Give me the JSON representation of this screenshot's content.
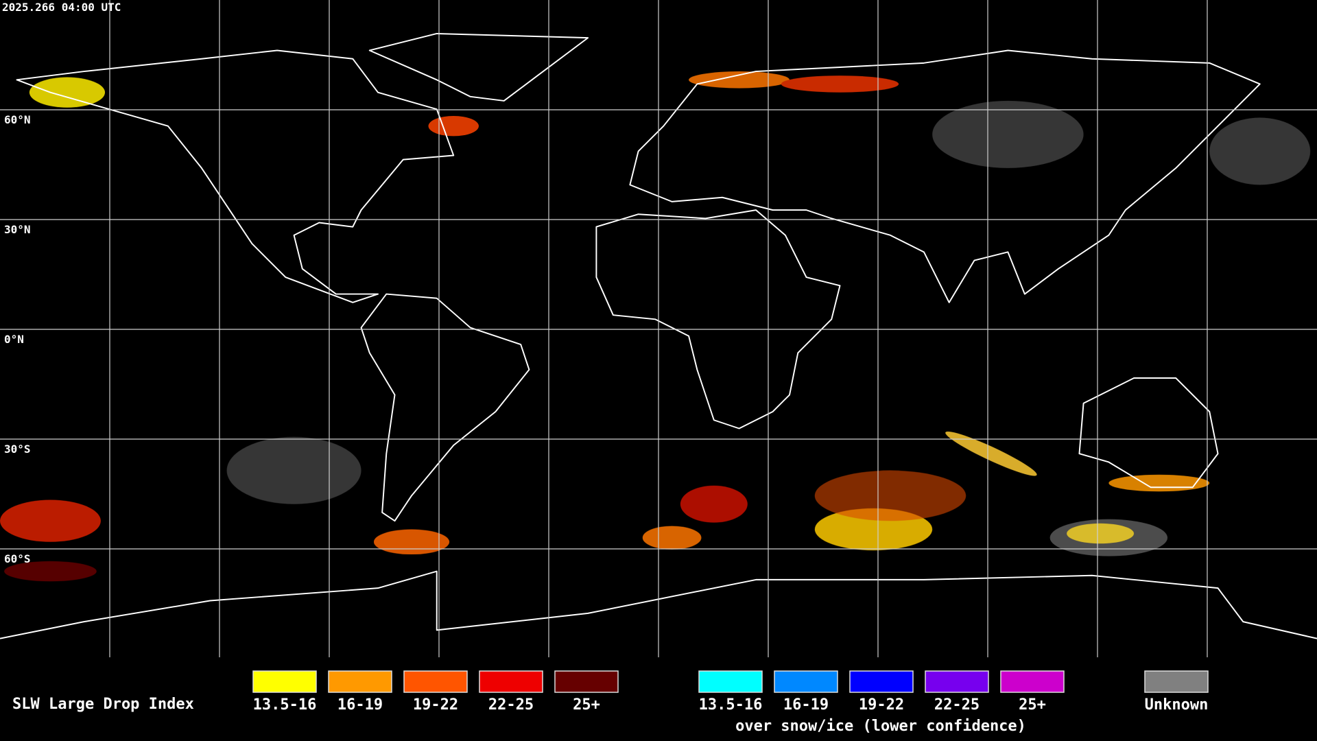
{
  "header": {
    "timestamp": "2025.266 04:00 UTC"
  },
  "map": {
    "lat_labels": [
      "60°N",
      "30°N",
      "0°N",
      "30°S",
      "60°S"
    ]
  },
  "legend": {
    "title": "SLW Large Drop Index",
    "groups": [
      {
        "items": [
          {
            "label": "13.5-16",
            "color": "#ffff00"
          },
          {
            "label": "16-19",
            "color": "#ff9900"
          },
          {
            "label": "19-22",
            "color": "#ff5500"
          },
          {
            "label": "22-25",
            "color": "#ee0000"
          },
          {
            "label": "25+",
            "color": "#660000"
          }
        ]
      },
      {
        "items": [
          {
            "label": "13.5-16",
            "color": "#00ffff"
          },
          {
            "label": "16-19",
            "color": "#0088ff"
          },
          {
            "label": "19-22",
            "color": "#0000ff"
          },
          {
            "label": "22-25",
            "color": "#7700ee"
          },
          {
            "label": "25+",
            "color": "#cc00cc"
          }
        ],
        "caption": "over snow/ice (lower confidence)"
      },
      {
        "items": [
          {
            "label": "Unknown",
            "color": "#808080"
          }
        ]
      }
    ]
  }
}
